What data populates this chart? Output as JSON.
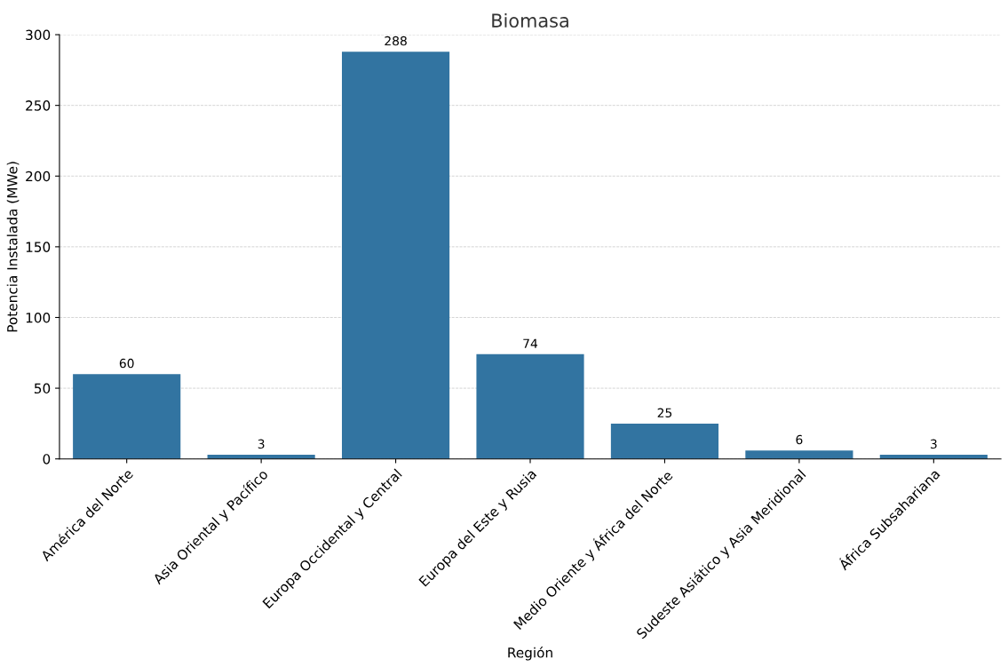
{
  "chart_data": {
    "type": "bar",
    "title": "Biomasa",
    "xlabel": "Región",
    "ylabel": "Potencia Instalada (MWe)",
    "categories": [
      "América del Norte",
      "Asia Oriental y Pacífico",
      "Europa Occidental y Central",
      "Europa del Este y Rusia",
      "Medio Oriente y África del Norte",
      "Sudeste Asiático y Asia Meridional",
      "África Subsahariana"
    ],
    "values": [
      60,
      3,
      288,
      74,
      25,
      6,
      3
    ],
    "color": "#3274a1",
    "ylim": [
      0,
      300
    ],
    "yticks": [
      0,
      50,
      100,
      150,
      200,
      250,
      300
    ],
    "grid": "y",
    "data_labels": true
  }
}
